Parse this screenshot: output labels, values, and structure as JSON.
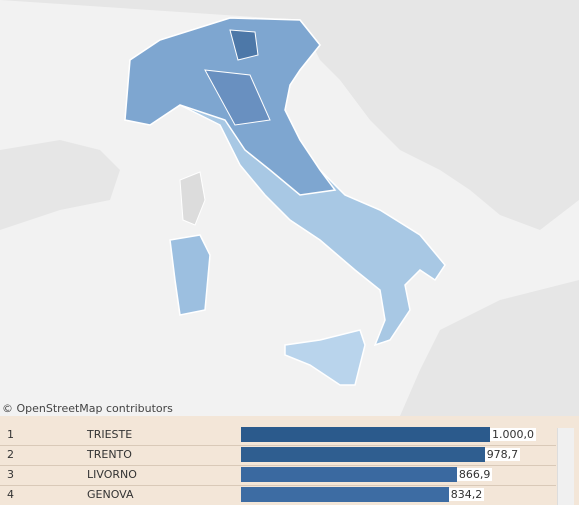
{
  "map": {
    "attribution": "© OpenStreetMap contributors"
  },
  "table": {
    "rows": [
      {
        "rank": 1,
        "name": "TRIESTE",
        "value": 1000.0,
        "value_label": "1.000,0",
        "color": "#2b5a8c"
      },
      {
        "rank": 2,
        "name": "TRENTO",
        "value": 978.7,
        "value_label": "978,7",
        "color": "#2f5e90"
      },
      {
        "rank": 3,
        "name": "LIVORNO",
        "value": 866.9,
        "value_label": "866,9",
        "color": "#3a69a0"
      },
      {
        "rank": 4,
        "name": "GENOVA",
        "value": 834.2,
        "value_label": "834,2",
        "color": "#3d6ca3"
      }
    ]
  }
}
